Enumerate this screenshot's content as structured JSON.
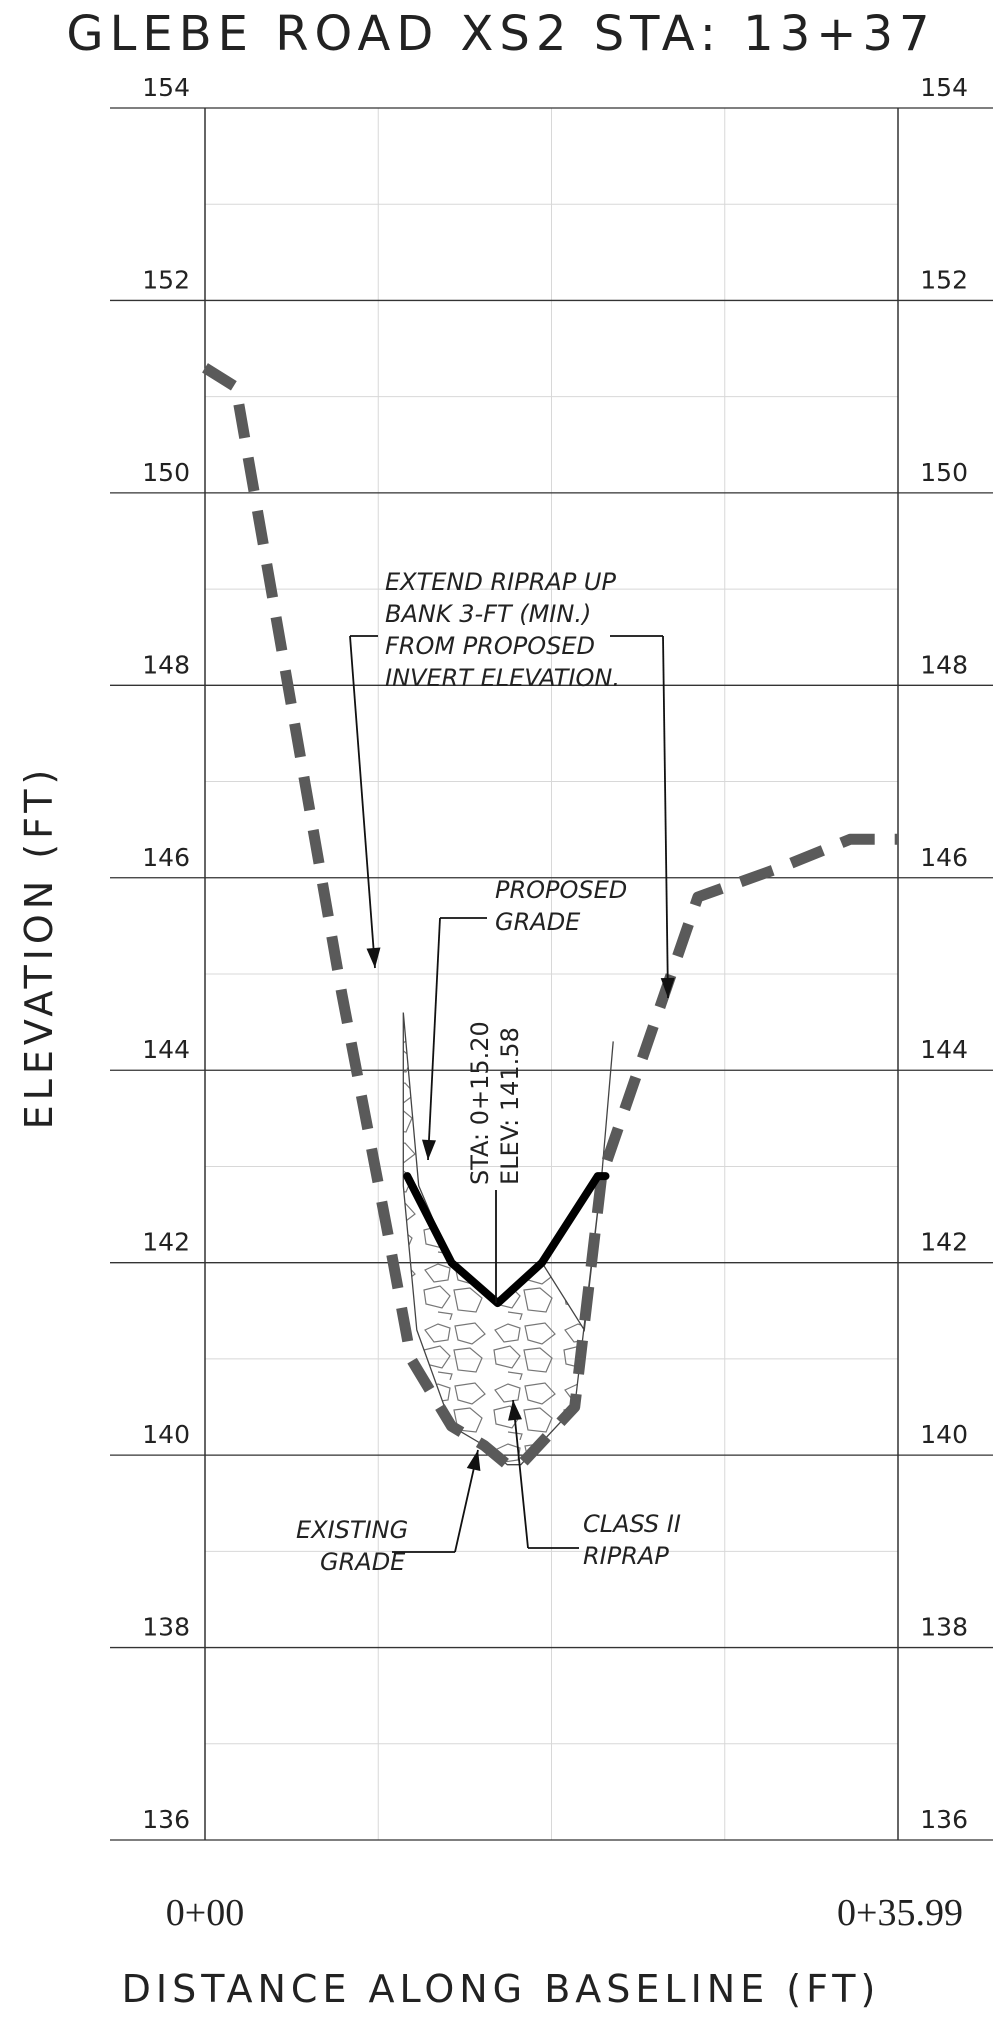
{
  "title": "GLEBE ROAD XS2 STA: 13+37",
  "axes": {
    "ylabel": "ELEVATION (FT)",
    "xlabel": "DISTANCE ALONG BASELINE (FT)",
    "y_ticks": [
      "154",
      "152",
      "150",
      "148",
      "146",
      "144",
      "142",
      "140",
      "138",
      "136"
    ],
    "x_start_label": "0+00",
    "x_end_label": "0+35.99"
  },
  "annotations": {
    "riprap_ext": [
      "EXTEND RIPRAP UP",
      "BANK 3-FT (MIN.)",
      "FROM PROPOSED",
      "INVERT ELEVATION."
    ],
    "proposed": [
      "PROPOSED",
      "GRADE"
    ],
    "station": [
      "STA: 0+15.20",
      "ELEV: 141.58"
    ],
    "existing": [
      "EXISTING",
      "GRADE"
    ],
    "riprap": [
      "CLASS II",
      "RIPRAP"
    ]
  },
  "chart_data": {
    "type": "line",
    "title": "GLEBE ROAD XS2 STA: 13+37",
    "xlabel": "DISTANCE ALONG BASELINE (FT)",
    "ylabel": "ELEVATION (FT)",
    "xlim": [
      0,
      35.99
    ],
    "ylim": [
      136,
      154
    ],
    "grid": true,
    "series": [
      {
        "line_style": "dashed",
        "x": [
          0.0,
          1.6,
          7.1,
          9.5,
          10.7,
          12.8,
          14.5,
          15.7,
          16.4,
          19.2,
          20.6,
          25.6,
          29.8,
          33.5,
          35.99
        ],
        "y": [
          151.3,
          151.1,
          144.8,
          142.3,
          141.0,
          140.3,
          140.1,
          139.9,
          139.9,
          140.5,
          142.9,
          145.8,
          146.1,
          146.4,
          146.4
        ]
      },
      {
        "line_style": "solid",
        "x": [
          10.5,
          12.8,
          15.2,
          17.5,
          20.4,
          20.8
        ],
        "y": [
          142.9,
          142.0,
          141.58,
          142.0,
          142.9,
          142.9
        ]
      }
    ]
  }
}
